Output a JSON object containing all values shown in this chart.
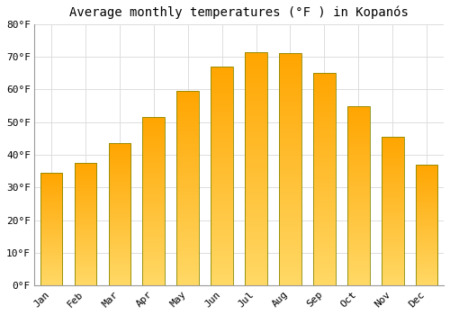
{
  "title": "Average monthly temperatures (°F ) in Kopanós",
  "months": [
    "Jan",
    "Feb",
    "Mar",
    "Apr",
    "May",
    "Jun",
    "Jul",
    "Aug",
    "Sep",
    "Oct",
    "Nov",
    "Dec"
  ],
  "values": [
    34.5,
    37.5,
    43.5,
    51.5,
    59.5,
    67.0,
    71.5,
    71.0,
    65.0,
    55.0,
    45.5,
    37.0
  ],
  "bar_color_main": "#FFA500",
  "bar_color_light": "#FFD966",
  "bar_edge_color": "#888800",
  "ylim": [
    0,
    80
  ],
  "yticks": [
    0,
    10,
    20,
    30,
    40,
    50,
    60,
    70,
    80
  ],
  "ytick_labels": [
    "0°F",
    "10°F",
    "20°F",
    "30°F",
    "40°F",
    "50°F",
    "60°F",
    "70°F",
    "80°F"
  ],
  "background_color": "#FFFFFF",
  "grid_color": "#DDDDDD",
  "title_fontsize": 10,
  "tick_fontsize": 8,
  "bar_width": 0.65
}
